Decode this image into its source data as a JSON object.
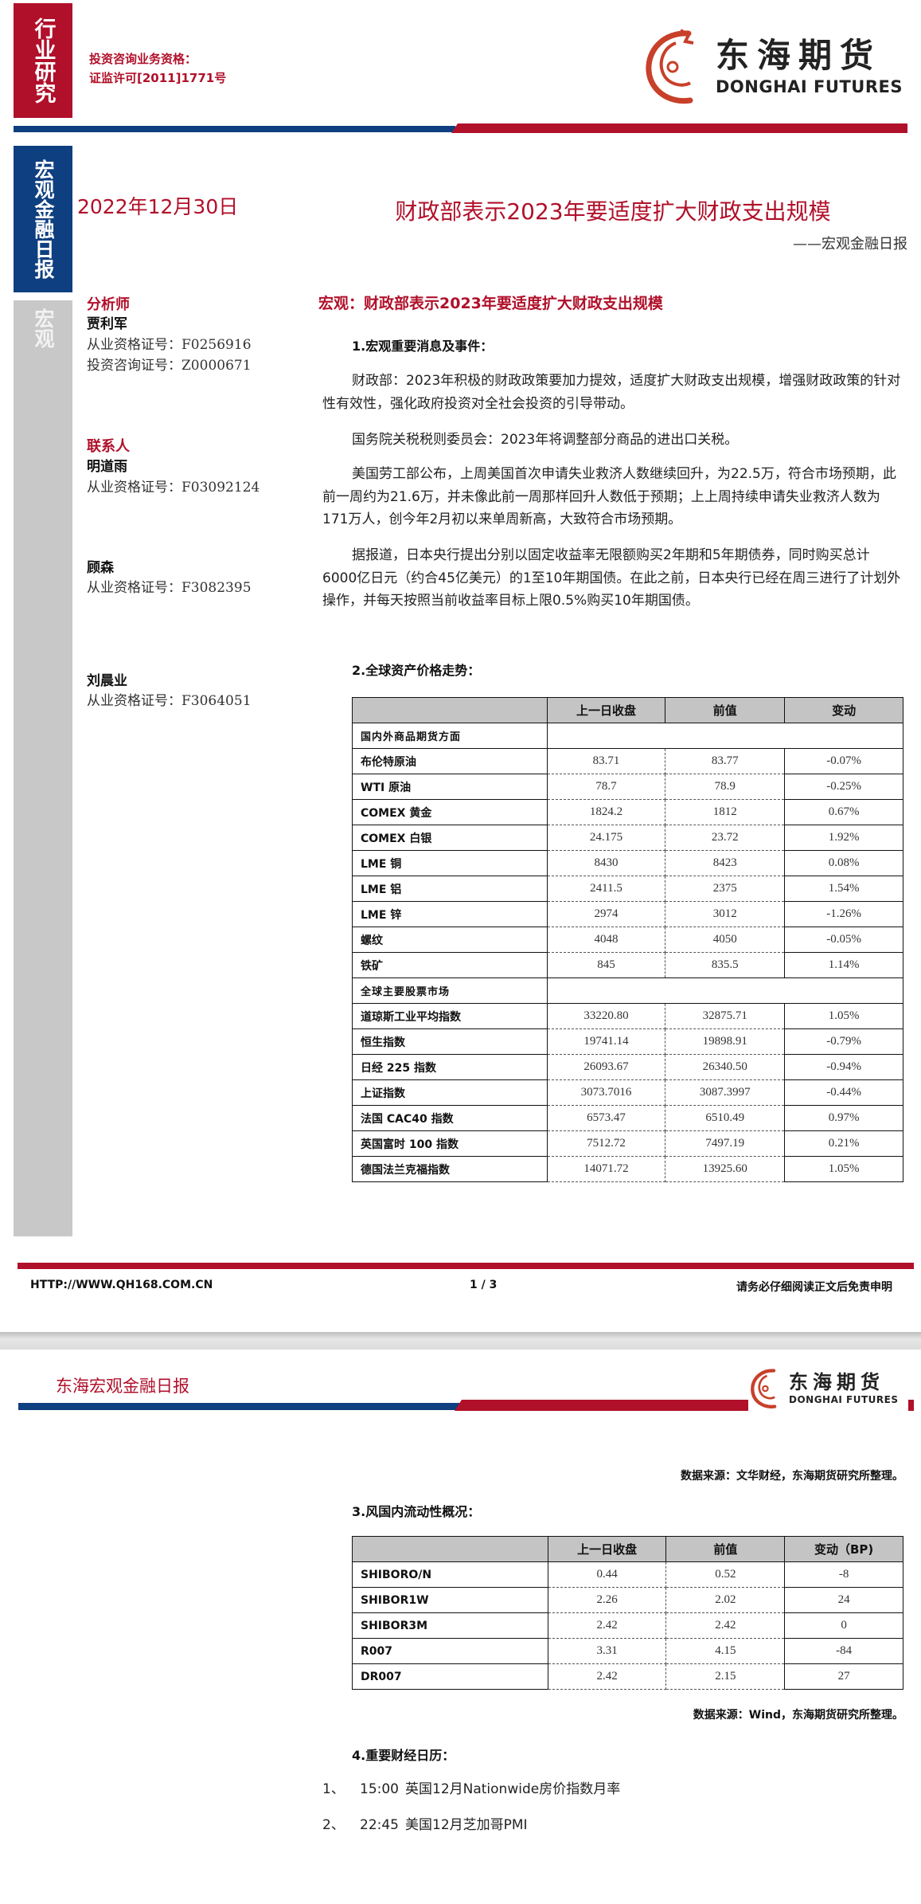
{
  "colors": {
    "brand_red": "#b0102a",
    "brand_blue": "#0e3f80",
    "side_gray": "#c8c8c8",
    "header_gray": "#c4c4c4"
  },
  "sidebar": {
    "category": "行业研究",
    "report_type": "宏观金融日报",
    "section": "宏观"
  },
  "license": {
    "line1": "投资咨询业务资格：",
    "line2": "证监许可[2011]1771号"
  },
  "logo": {
    "cn": "东海期货",
    "en": "DONGHAI FUTURES",
    "icon": "dragon-logo-icon"
  },
  "report": {
    "date": "2022年12月30日",
    "title": "财政部表示2023年要适度扩大财政支出规模",
    "subtitle": "——宏观金融日报",
    "headline": "宏观：财政部表示2023年要适度扩大财政支出规模"
  },
  "people": {
    "analyst_label": "分析师",
    "analyst": {
      "name": "贾利军",
      "cert1": "从业资格证号：F0256916",
      "cert2": "投资咨询证号：Z0000671"
    },
    "contact_label": "联系人",
    "contacts": [
      {
        "name": "明道雨",
        "cert": "从业资格证号：F03092124"
      },
      {
        "name": "顾森",
        "cert": "从业资格证号：F3082395"
      },
      {
        "name": "刘晨业",
        "cert": "从业资格证号：F3064051"
      }
    ]
  },
  "section1": {
    "heading": "1.宏观重要消息及事件：",
    "paragraphs": [
      "财政部：2023年积极的财政政策要加力提效，适度扩大财政支出规模，增强财政政策的针对性有效性，强化政府投资对全社会投资的引导带动。",
      "国务院关税税则委员会：2023年将调整部分商品的进出口关税。",
      "美国劳工部公布，上周美国首次申请失业救济人数继续回升，为22.5万，符合市场预期，此前一周约为21.6万，并未像此前一周那样回升人数低于预期；上上周持续申请失业救济人数为171万人，创今年2月初以来单周新高，大致符合市场预期。",
      "据报道，日本央行提出分别以固定收益率无限额购买2年期和5年期债券，同时购买总计6000亿日元（约合45亿美元）的1至10年期国债。在此之前，日本央行已经在周三进行了计划外操作，并每天按照当前收益率目标上限0.5%购买10年期国债。"
    ]
  },
  "section2": {
    "heading": "2.全球资产价格走势：",
    "columns": [
      "",
      "上一日收盘",
      "前值",
      "变动"
    ],
    "groups": [
      {
        "title": "国内外商品期货方面",
        "rows": [
          [
            "布伦特原油",
            "83.71",
            "83.77",
            "-0.07%"
          ],
          [
            "WTI 原油",
            "78.7",
            "78.9",
            "-0.25%"
          ],
          [
            "COMEX 黄金",
            "1824.2",
            "1812",
            "0.67%"
          ],
          [
            "COMEX 白银",
            "24.175",
            "23.72",
            "1.92%"
          ],
          [
            "LME 铜",
            "8430",
            "8423",
            "0.08%"
          ],
          [
            "LME 铝",
            "2411.5",
            "2375",
            "1.54%"
          ],
          [
            "LME 锌",
            "2974",
            "3012",
            "-1.26%"
          ],
          [
            "螺纹",
            "4048",
            "4050",
            "-0.05%"
          ],
          [
            "铁矿",
            "845",
            "835.5",
            "1.14%"
          ]
        ]
      },
      {
        "title": "全球主要股票市场",
        "rows": [
          [
            "道琼斯工业平均指数",
            "33220.80",
            "32875.71",
            "1.05%"
          ],
          [
            "恒生指数",
            "19741.14",
            "19898.91",
            "-0.79%"
          ],
          [
            "日经 225 指数",
            "26093.67",
            "26340.50",
            "-0.94%"
          ],
          [
            "上证指数",
            "3073.7016",
            "3087.3997",
            "-0.44%"
          ],
          [
            "法国 CAC40 指数",
            "6573.47",
            "6510.49",
            "0.97%"
          ],
          [
            "英国富时 100 指数",
            "7512.72",
            "7497.19",
            "0.21%"
          ],
          [
            "德国法兰克福指数",
            "14071.72",
            "13925.60",
            "1.05%"
          ]
        ]
      }
    ],
    "source": "数据来源：文华财经，东海期货研究所整理。"
  },
  "footer": {
    "url": "HTTP://WWW.QH168.COM.CN",
    "page": "1 / 3",
    "disclaimer": "请务必仔细阅读正文后免责申明"
  },
  "page2": {
    "header_title": "东海宏观金融日报"
  },
  "section3": {
    "heading": "3.风国内流动性概况：",
    "columns": [
      "",
      "上一日收盘",
      "前值",
      "变动（BP)"
    ],
    "rows": [
      [
        "SHIBORO/N",
        "0.44",
        "0.52",
        "-8"
      ],
      [
        "SHIBOR1W",
        "2.26",
        "2.02",
        "24"
      ],
      [
        "SHIBOR3M",
        "2.42",
        "2.42",
        "0"
      ],
      [
        "R007",
        "3.31",
        "4.15",
        "-84"
      ],
      [
        "DR007",
        "2.42",
        "2.15",
        "27"
      ]
    ],
    "source": "数据来源：Wind，东海期货研究所整理。"
  },
  "section4": {
    "heading": "4.重要财经日历：",
    "items": [
      {
        "num": "1、",
        "time": "15:00",
        "event": "英国12月Nationwide房价指数月率"
      },
      {
        "num": "2、",
        "time": "22:45",
        "event": "美国12月芝加哥PMI"
      }
    ]
  }
}
